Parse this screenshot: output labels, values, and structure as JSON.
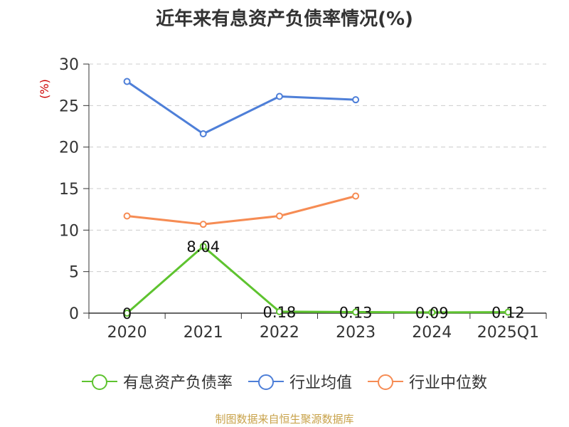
{
  "chart_data": {
    "type": "line",
    "title": "近年来有息资产负债率情况(%)",
    "ylabel": "(%)",
    "xlabel": "",
    "categories": [
      "2020",
      "2021",
      "2022",
      "2023",
      "2024",
      "2025Q1"
    ],
    "ylim": [
      0,
      30
    ],
    "yticks": [
      0,
      5,
      10,
      15,
      20,
      25,
      30
    ],
    "grid": true,
    "legend_position": "bottom",
    "series": [
      {
        "name": "有息资产负债率",
        "color": "#5ec32f",
        "values": [
          0,
          8.04,
          0.18,
          0.13,
          0.09,
          0.12
        ],
        "labels": [
          "0",
          "8.04",
          "0.18",
          "0.13",
          "0.09",
          "0.12"
        ]
      },
      {
        "name": "行业均值",
        "color": "#4e7fd8",
        "values": [
          27.9,
          21.6,
          26.1,
          25.7,
          null,
          null
        ]
      },
      {
        "name": "行业中位数",
        "color": "#f68c54",
        "values": [
          11.7,
          10.7,
          11.7,
          14.1,
          null,
          null
        ]
      }
    ]
  },
  "source": "制图数据来自恒生聚源数据库"
}
